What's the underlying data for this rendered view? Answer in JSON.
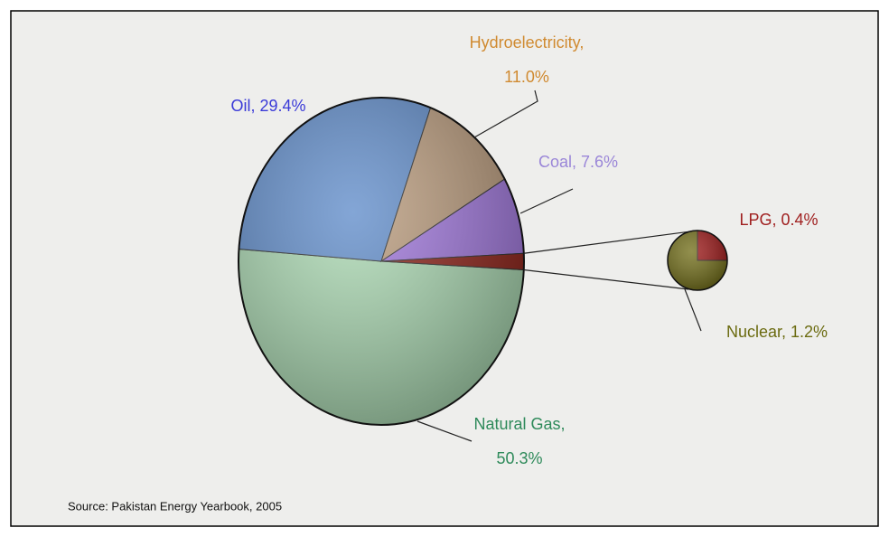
{
  "chart_data": {
    "type": "pie-of-pie",
    "categories": [
      "Natural Gas",
      "Oil",
      "Hydroelectricity",
      "Coal",
      "LPG",
      "Nuclear"
    ],
    "values": [
      50.3,
      29.4,
      11.0,
      7.6,
      0.4,
      1.2
    ],
    "value_labels": [
      [
        "Natural Gas,",
        "50.3%"
      ],
      [
        "Oil, 29.4%"
      ],
      [
        "Hydroelectricity,",
        "11.0%"
      ],
      [
        "Coal, 7.6%"
      ],
      [
        "LPG, 0.4%"
      ],
      [
        "Nuclear, 1.2%"
      ]
    ],
    "colors": [
      "#a8d8b0",
      "#5a88c8",
      "#b89878",
      "#9d72dc",
      "#9a1010",
      "#6e6a12"
    ],
    "label_colors": [
      "#2e8a5a",
      "#3a3ad8",
      "#d08a30",
      "#9a86d8",
      "#a02020",
      "#6b6b10"
    ],
    "other_color": "#8a1a10",
    "split_count": 2,
    "source": "Source: Pakistan Energy Yearbook, 2005"
  }
}
